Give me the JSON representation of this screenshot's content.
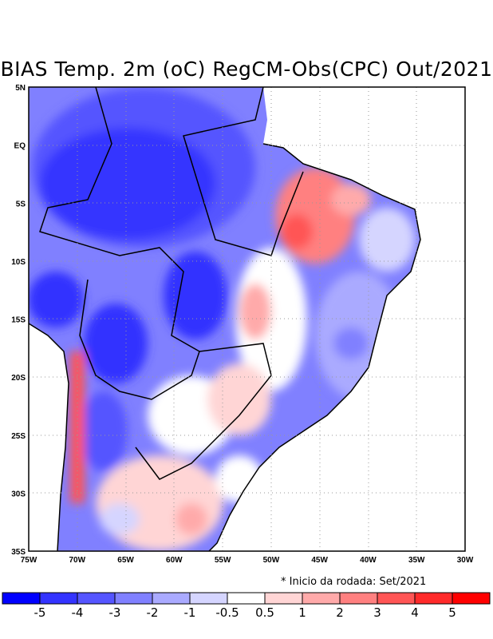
{
  "title": "BIAS Temp. 2m (oC) RegCM-Obs(CPC) Out/2021",
  "note": "* Inicio da rodada: Set/2021",
  "lat_labels": [
    "5N",
    "EQ",
    "5S",
    "10S",
    "15S",
    "20S",
    "25S",
    "30S",
    "35S"
  ],
  "lon_labels": [
    "75W",
    "70W",
    "65W",
    "60W",
    "55W",
    "50W",
    "45W",
    "40W",
    "35W",
    "30W"
  ],
  "colorbar": {
    "colors": [
      "#0000ff",
      "#3333ff",
      "#5555ff",
      "#8080ff",
      "#aaaaff",
      "#d5d5ff",
      "#ffffff",
      "#ffd5d5",
      "#ffaaaa",
      "#ff8080",
      "#ff5555",
      "#ff2a2a",
      "#ff0000"
    ],
    "labels": [
      "-5",
      "-4",
      "-3",
      "-2",
      "-1",
      "-0.5",
      "0.5",
      "1",
      "2",
      "3",
      "4",
      "5"
    ]
  },
  "chart_data": {
    "type": "heatmap",
    "title": "BIAS Temp. 2m (oC) RegCM-Obs(CPC) Out/2021",
    "lon_range": [
      -75,
      -30
    ],
    "lat_range": [
      -35,
      5
    ],
    "levels": [
      -5,
      -4,
      -3,
      -2,
      -1,
      -0.5,
      0.5,
      1,
      2,
      3,
      4,
      5
    ],
    "grid": "dotted every 5 degrees"
  }
}
